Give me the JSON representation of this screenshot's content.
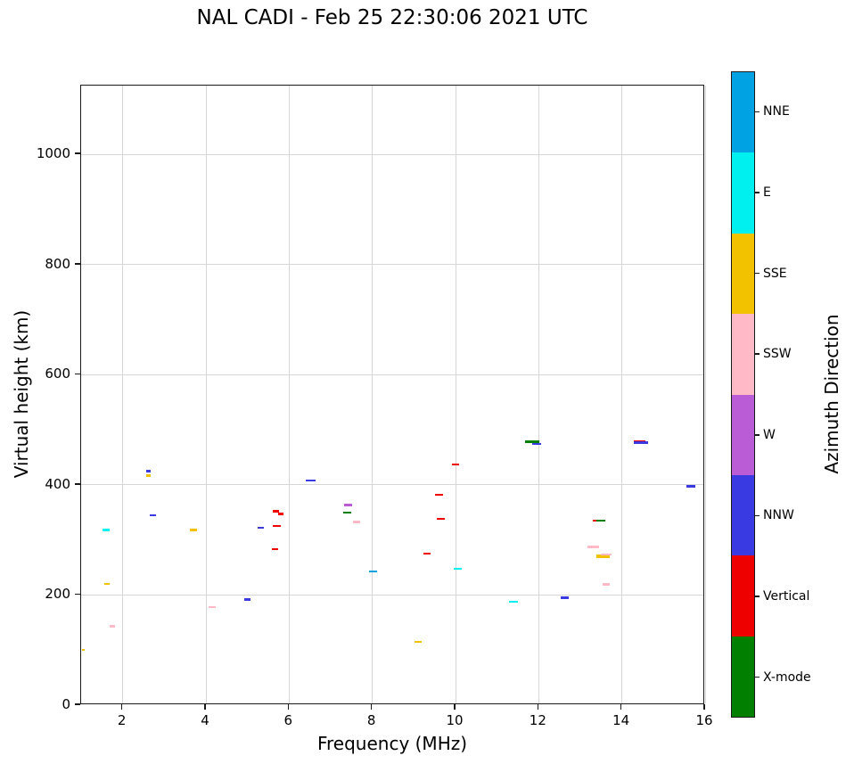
{
  "chart_data": {
    "type": "scatter",
    "title": "NAL CADI - Feb 25 22:30:06 2021 UTC",
    "xlabel": "Frequency (MHz)",
    "ylabel": "Virtual height (km)",
    "xlim": [
      1,
      16
    ],
    "ylim": [
      0,
      1125
    ],
    "xticks": [
      2,
      4,
      6,
      8,
      10,
      12,
      14,
      16
    ],
    "yticks": [
      0,
      200,
      400,
      600,
      800,
      1000
    ],
    "grid": true,
    "marker_style": "short-horizontal-dash",
    "colorbar": {
      "label": "Azimuth Direction",
      "position": "right",
      "entries": [
        {
          "label": "NNE",
          "color": "#00A2E3"
        },
        {
          "label": "E",
          "color": "#00EFEF"
        },
        {
          "label": "SSE",
          "color": "#F2C200"
        },
        {
          "label": "SSW",
          "color": "#FFB9C7"
        },
        {
          "label": "W",
          "color": "#B95CD6"
        },
        {
          "label": "NNW",
          "color": "#3A3AE3"
        },
        {
          "label": "Vertical",
          "color": "#EE0000"
        },
        {
          "label": "X-mode",
          "color": "#007F00"
        }
      ]
    },
    "points": [
      {
        "x": 1.05,
        "y": 100,
        "dir": "SSE",
        "w": 0.07,
        "h": 2.5
      },
      {
        "x": 1.6,
        "y": 318,
        "dir": "E",
        "w": 0.16,
        "h": 2.5
      },
      {
        "x": 1.62,
        "y": 220,
        "dir": "SSE",
        "w": 0.12,
        "h": 2.5
      },
      {
        "x": 1.75,
        "y": 143,
        "dir": "SSW",
        "w": 0.12,
        "h": 2.5
      },
      {
        "x": 2.62,
        "y": 425,
        "dir": "NNW",
        "w": 0.1,
        "h": 3
      },
      {
        "x": 2.62,
        "y": 417,
        "dir": "SSE",
        "w": 0.1,
        "h": 2.5
      },
      {
        "x": 2.72,
        "y": 345,
        "dir": "NNW",
        "w": 0.16,
        "h": 2.5
      },
      {
        "x": 3.7,
        "y": 318,
        "dir": "SSE",
        "w": 0.16,
        "h": 2.5
      },
      {
        "x": 4.15,
        "y": 178,
        "dir": "SSW",
        "w": 0.16,
        "h": 2.5
      },
      {
        "x": 5.0,
        "y": 192,
        "dir": "NNW",
        "w": 0.16,
        "h": 2.5
      },
      {
        "x": 5.32,
        "y": 322,
        "dir": "NNW",
        "w": 0.16,
        "h": 2.5
      },
      {
        "x": 5.68,
        "y": 352,
        "dir": "Vertical",
        "w": 0.16,
        "h": 2.5
      },
      {
        "x": 5.8,
        "y": 347,
        "dir": "Vertical",
        "w": 0.12,
        "h": 2.5
      },
      {
        "x": 5.7,
        "y": 325,
        "dir": "Vertical",
        "w": 0.18,
        "h": 2.5
      },
      {
        "x": 5.66,
        "y": 283,
        "dir": "Vertical",
        "w": 0.16,
        "h": 2.5
      },
      {
        "x": 6.52,
        "y": 408,
        "dir": "NNW",
        "w": 0.22,
        "h": 2.5
      },
      {
        "x": 7.42,
        "y": 363,
        "dir": "W",
        "w": 0.18,
        "h": 2.5
      },
      {
        "x": 7.4,
        "y": 350,
        "dir": "X-mode",
        "w": 0.18,
        "h": 2.5
      },
      {
        "x": 7.62,
        "y": 333,
        "dir": "SSW",
        "w": 0.18,
        "h": 2.5
      },
      {
        "x": 8.02,
        "y": 243,
        "dir": "NNE",
        "w": 0.2,
        "h": 2.5
      },
      {
        "x": 9.1,
        "y": 115,
        "dir": "SSE",
        "w": 0.18,
        "h": 2.5
      },
      {
        "x": 9.32,
        "y": 275,
        "dir": "Vertical",
        "w": 0.18,
        "h": 2.5
      },
      {
        "x": 9.6,
        "y": 382,
        "dir": "Vertical",
        "w": 0.2,
        "h": 2.5
      },
      {
        "x": 9.65,
        "y": 338,
        "dir": "Vertical",
        "w": 0.18,
        "h": 2.5
      },
      {
        "x": 10.0,
        "y": 437,
        "dir": "Vertical",
        "w": 0.16,
        "h": 2.5
      },
      {
        "x": 10.05,
        "y": 248,
        "dir": "E",
        "w": 0.18,
        "h": 2.5
      },
      {
        "x": 11.4,
        "y": 188,
        "dir": "E",
        "w": 0.22,
        "h": 2.5
      },
      {
        "x": 11.85,
        "y": 478,
        "dir": "X-mode",
        "w": 0.35,
        "h": 3
      },
      {
        "x": 11.95,
        "y": 475,
        "dir": "NNW",
        "w": 0.22,
        "h": 2
      },
      {
        "x": 12.62,
        "y": 195,
        "dir": "NNW",
        "w": 0.2,
        "h": 2.5
      },
      {
        "x": 13.32,
        "y": 287,
        "dir": "SSW",
        "w": 0.28,
        "h": 2.5
      },
      {
        "x": 13.35,
        "y": 335,
        "dir": "Vertical",
        "w": 0.1,
        "h": 2.5
      },
      {
        "x": 13.5,
        "y": 335,
        "dir": "X-mode",
        "w": 0.22,
        "h": 2.5
      },
      {
        "x": 13.55,
        "y": 270,
        "dir": "SSE",
        "w": 0.32,
        "h": 4.5
      },
      {
        "x": 13.62,
        "y": 273,
        "dir": "SSW",
        "w": 0.25,
        "h": 2
      },
      {
        "x": 13.62,
        "y": 219,
        "dir": "SSW",
        "w": 0.18,
        "h": 2.5
      },
      {
        "x": 14.45,
        "y": 477,
        "dir": "NNW",
        "w": 0.35,
        "h": 3
      },
      {
        "x": 14.42,
        "y": 480,
        "dir": "Vertical",
        "w": 0.28,
        "h": 1.8
      },
      {
        "x": 15.65,
        "y": 397,
        "dir": "NNW",
        "w": 0.22,
        "h": 2.5
      }
    ]
  }
}
